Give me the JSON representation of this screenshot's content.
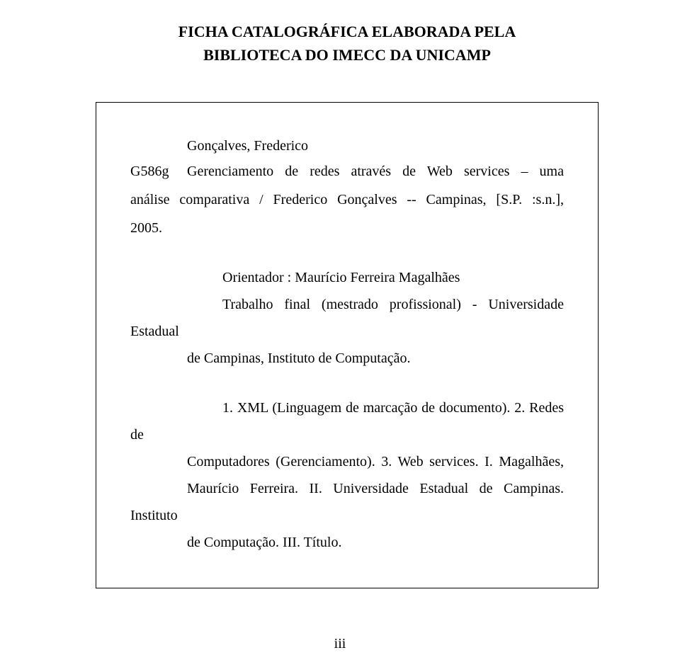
{
  "header": {
    "line1": "FICHA CATALOGRÁFICA ELABORADA PELA",
    "line2": "BIBLIOTECA DO IMECC DA UNICAMP"
  },
  "card": {
    "author": "Gonçalves, Frederico",
    "code": "G586g",
    "title_line1": "Gerenciamento de redes através de Web services – uma",
    "title_line2": "análise comparativa / Frederico Gonçalves -- Campinas, [S.P. :s.n.],",
    "year": "2005.",
    "advisor_line1": "Orientador : Maurício Ferreira Magalhães",
    "work_line1": "Trabalho final (mestrado profissional) - Universidade Estadual",
    "work_line2": "de Campinas, Instituto de Computação.",
    "subjects_line1": "1. XML (Linguagem de marcação de documento). 2. Redes de",
    "subjects_line2": "Computadores (Gerenciamento). 3. Web services. I. Magalhães,",
    "subjects_line3": "Maurício Ferreira. II. Universidade Estadual de Campinas. Instituto",
    "subjects_line4": "de Computação. III. Título."
  },
  "page_number": "iii",
  "colors": {
    "background": "#ffffff",
    "text": "#000000",
    "border": "#000000"
  },
  "typography": {
    "header_fontsize": 22,
    "body_fontsize": 20,
    "font_family": "Times New Roman"
  }
}
